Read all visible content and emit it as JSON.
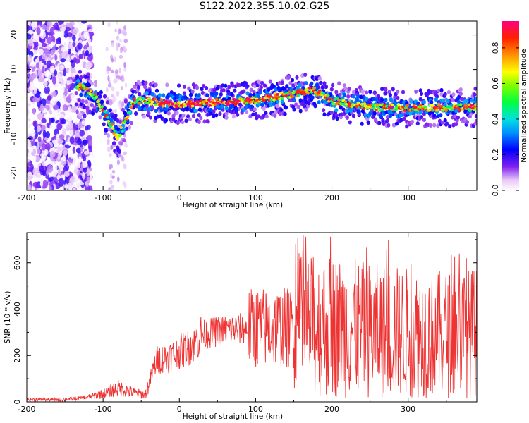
{
  "title": "S122.2022.355.10.02.G25",
  "chart_data": [
    {
      "type": "heatmap",
      "xlabel": "Height of straight line (km)",
      "ylabel": "Frequency (Hz)",
      "xlim": [
        -200,
        390
      ],
      "ylim": [
        -25,
        24
      ],
      "xticks": [
        -200,
        -100,
        0,
        100,
        200,
        300
      ],
      "yticks": [
        -20,
        -10,
        0,
        10,
        20
      ],
      "ridge": {
        "x": [
          -130,
          -120,
          -110,
          -100,
          -90,
          -80,
          -70,
          -60,
          -50,
          -40,
          -30,
          0,
          50,
          100,
          150,
          175,
          200,
          250,
          300,
          350,
          390
        ],
        "y": [
          5,
          4,
          2,
          -2,
          -6,
          -10,
          -4,
          1,
          1,
          1,
          0.5,
          0,
          0.5,
          1,
          3,
          4,
          1,
          -1,
          -1,
          -1,
          -1
        ]
      },
      "colorbar": {
        "label": "Normalized spectral amplitude",
        "ticks": [
          0.0,
          0.2,
          0.4,
          0.6,
          0.8
        ],
        "range": [
          0,
          0.95
        ]
      }
    },
    {
      "type": "line",
      "xlabel": "Height of straight line (km)",
      "ylabel": "SNR (10 * v/v)",
      "xlim": [
        -200,
        390
      ],
      "ylim": [
        0,
        730
      ],
      "xticks": [
        -200,
        -100,
        0,
        100,
        200,
        300
      ],
      "yticks": [
        0,
        200,
        400,
        600
      ],
      "color": "#ee3333",
      "envelope": {
        "x": [
          -200,
          -150,
          -120,
          -100,
          -80,
          -60,
          -45,
          -30,
          -10,
          10,
          30,
          60,
          100,
          150,
          200,
          250,
          300,
          350,
          390
        ],
        "y": [
          10,
          10,
          20,
          35,
          60,
          40,
          30,
          180,
          200,
          230,
          290,
          310,
          320,
          320,
          330,
          310,
          300,
          290,
          300
        ]
      }
    }
  ]
}
